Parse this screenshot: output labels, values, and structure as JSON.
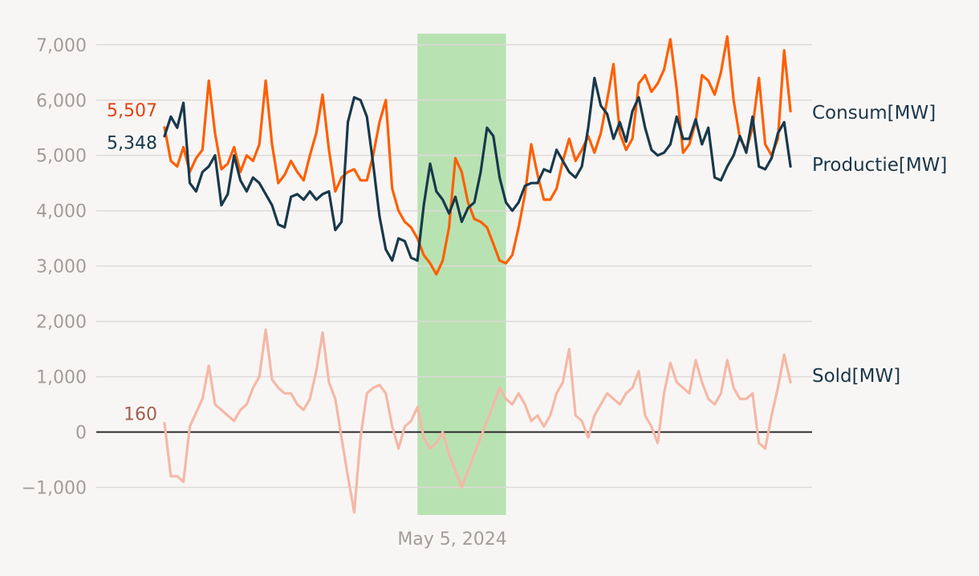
{
  "chart_data": {
    "type": "line",
    "ylim": [
      -1500,
      7200
    ],
    "xlim": [
      0,
      1
    ],
    "y_ticks": [
      {
        "value": 7000,
        "label": "7,000"
      },
      {
        "value": 6000,
        "label": "6,000"
      },
      {
        "value": 5000,
        "label": "5,000"
      },
      {
        "value": 4000,
        "label": "4,000"
      },
      {
        "value": 3000,
        "label": "3,000"
      },
      {
        "value": 2000,
        "label": "2,000"
      },
      {
        "value": 1000,
        "label": "1,000"
      },
      {
        "value": 0,
        "label": "0"
      },
      {
        "value": -1000,
        "label": "−1,000"
      }
    ],
    "x_ticks": [
      {
        "x": 0.455,
        "label": "May 5, 2024"
      }
    ],
    "highlight": {
      "x_start": 0.4,
      "x_end": 0.54,
      "color": "#b9e2b3"
    },
    "zero_line_color": "#222222",
    "series": [
      {
        "name": "Consum[MW]",
        "color": "#ff5f00",
        "start_label": "5,507",
        "start_label_color": "#e0430e",
        "points": [
          [
            0.0,
            5507
          ],
          [
            0.01,
            4900
          ],
          [
            0.02,
            4800
          ],
          [
            0.03,
            5150
          ],
          [
            0.04,
            4700
          ],
          [
            0.05,
            4950
          ],
          [
            0.06,
            5100
          ],
          [
            0.07,
            6350
          ],
          [
            0.08,
            5400
          ],
          [
            0.09,
            4750
          ],
          [
            0.1,
            4850
          ],
          [
            0.11,
            5150
          ],
          [
            0.12,
            4700
          ],
          [
            0.13,
            5000
          ],
          [
            0.14,
            4900
          ],
          [
            0.15,
            5200
          ],
          [
            0.16,
            6350
          ],
          [
            0.17,
            5200
          ],
          [
            0.18,
            4500
          ],
          [
            0.19,
            4650
          ],
          [
            0.2,
            4900
          ],
          [
            0.21,
            4700
          ],
          [
            0.22,
            4550
          ],
          [
            0.23,
            5000
          ],
          [
            0.24,
            5400
          ],
          [
            0.25,
            6100
          ],
          [
            0.26,
            5100
          ],
          [
            0.27,
            4350
          ],
          [
            0.28,
            4600
          ],
          [
            0.29,
            4700
          ],
          [
            0.3,
            4750
          ],
          [
            0.31,
            4550
          ],
          [
            0.32,
            4550
          ],
          [
            0.33,
            5000
          ],
          [
            0.34,
            5600
          ],
          [
            0.35,
            6000
          ],
          [
            0.36,
            4400
          ],
          [
            0.37,
            4000
          ],
          [
            0.38,
            3800
          ],
          [
            0.39,
            3700
          ],
          [
            0.4,
            3500
          ],
          [
            0.41,
            3200
          ],
          [
            0.42,
            3050
          ],
          [
            0.43,
            2850
          ],
          [
            0.44,
            3100
          ],
          [
            0.45,
            3700
          ],
          [
            0.46,
            4950
          ],
          [
            0.47,
            4700
          ],
          [
            0.48,
            4150
          ],
          [
            0.49,
            3850
          ],
          [
            0.5,
            3800
          ],
          [
            0.51,
            3700
          ],
          [
            0.52,
            3400
          ],
          [
            0.53,
            3100
          ],
          [
            0.54,
            3050
          ],
          [
            0.55,
            3200
          ],
          [
            0.56,
            3700
          ],
          [
            0.57,
            4300
          ],
          [
            0.58,
            5200
          ],
          [
            0.59,
            4650
          ],
          [
            0.6,
            4200
          ],
          [
            0.61,
            4200
          ],
          [
            0.62,
            4400
          ],
          [
            0.63,
            4900
          ],
          [
            0.64,
            5300
          ],
          [
            0.65,
            4900
          ],
          [
            0.66,
            5100
          ],
          [
            0.67,
            5350
          ],
          [
            0.68,
            5050
          ],
          [
            0.69,
            5400
          ],
          [
            0.7,
            6000
          ],
          [
            0.71,
            6650
          ],
          [
            0.72,
            5400
          ],
          [
            0.73,
            5100
          ],
          [
            0.74,
            5300
          ],
          [
            0.75,
            6300
          ],
          [
            0.76,
            6450
          ],
          [
            0.77,
            6150
          ],
          [
            0.78,
            6300
          ],
          [
            0.79,
            6550
          ],
          [
            0.8,
            7100
          ],
          [
            0.81,
            6200
          ],
          [
            0.82,
            5050
          ],
          [
            0.83,
            5200
          ],
          [
            0.84,
            5600
          ],
          [
            0.85,
            6450
          ],
          [
            0.86,
            6350
          ],
          [
            0.87,
            6100
          ],
          [
            0.88,
            6500
          ],
          [
            0.89,
            7150
          ],
          [
            0.9,
            6000
          ],
          [
            0.91,
            5300
          ],
          [
            0.92,
            5100
          ],
          [
            0.93,
            5500
          ],
          [
            0.94,
            6400
          ],
          [
            0.95,
            5200
          ],
          [
            0.96,
            5000
          ],
          [
            0.97,
            5300
          ],
          [
            0.98,
            6900
          ],
          [
            0.99,
            5800
          ]
        ]
      },
      {
        "name": "Productie[MW]",
        "color": "#18394b",
        "start_label": "5,348",
        "start_label_color": "#18394b",
        "points": [
          [
            0.0,
            5348
          ],
          [
            0.01,
            5700
          ],
          [
            0.02,
            5500
          ],
          [
            0.03,
            5950
          ],
          [
            0.04,
            4500
          ],
          [
            0.05,
            4350
          ],
          [
            0.06,
            4700
          ],
          [
            0.07,
            4800
          ],
          [
            0.08,
            5000
          ],
          [
            0.09,
            4100
          ],
          [
            0.1,
            4300
          ],
          [
            0.11,
            5000
          ],
          [
            0.12,
            4550
          ],
          [
            0.13,
            4350
          ],
          [
            0.14,
            4600
          ],
          [
            0.15,
            4500
          ],
          [
            0.16,
            4300
          ],
          [
            0.17,
            4100
          ],
          [
            0.18,
            3750
          ],
          [
            0.19,
            3700
          ],
          [
            0.2,
            4250
          ],
          [
            0.21,
            4300
          ],
          [
            0.22,
            4200
          ],
          [
            0.23,
            4350
          ],
          [
            0.24,
            4200
          ],
          [
            0.25,
            4300
          ],
          [
            0.26,
            4350
          ],
          [
            0.27,
            3650
          ],
          [
            0.28,
            3800
          ],
          [
            0.29,
            5600
          ],
          [
            0.3,
            6050
          ],
          [
            0.31,
            6000
          ],
          [
            0.32,
            5700
          ],
          [
            0.33,
            4850
          ],
          [
            0.34,
            3900
          ],
          [
            0.35,
            3300
          ],
          [
            0.36,
            3100
          ],
          [
            0.37,
            3500
          ],
          [
            0.38,
            3450
          ],
          [
            0.39,
            3150
          ],
          [
            0.4,
            3100
          ],
          [
            0.41,
            4100
          ],
          [
            0.42,
            4850
          ],
          [
            0.43,
            4350
          ],
          [
            0.44,
            4200
          ],
          [
            0.45,
            3950
          ],
          [
            0.46,
            4250
          ],
          [
            0.47,
            3800
          ],
          [
            0.48,
            4050
          ],
          [
            0.49,
            4150
          ],
          [
            0.5,
            4700
          ],
          [
            0.51,
            5500
          ],
          [
            0.52,
            5350
          ],
          [
            0.53,
            4600
          ],
          [
            0.54,
            4150
          ],
          [
            0.55,
            4000
          ],
          [
            0.56,
            4150
          ],
          [
            0.57,
            4450
          ],
          [
            0.58,
            4500
          ],
          [
            0.59,
            4500
          ],
          [
            0.6,
            4750
          ],
          [
            0.61,
            4700
          ],
          [
            0.62,
            5100
          ],
          [
            0.63,
            4900
          ],
          [
            0.64,
            4700
          ],
          [
            0.65,
            4600
          ],
          [
            0.66,
            4800
          ],
          [
            0.67,
            5500
          ],
          [
            0.68,
            6400
          ],
          [
            0.69,
            5900
          ],
          [
            0.7,
            5750
          ],
          [
            0.71,
            5300
          ],
          [
            0.72,
            5600
          ],
          [
            0.73,
            5250
          ],
          [
            0.74,
            5800
          ],
          [
            0.75,
            6050
          ],
          [
            0.76,
            5500
          ],
          [
            0.77,
            5100
          ],
          [
            0.78,
            5000
          ],
          [
            0.79,
            5050
          ],
          [
            0.8,
            5200
          ],
          [
            0.81,
            5700
          ],
          [
            0.82,
            5300
          ],
          [
            0.83,
            5300
          ],
          [
            0.84,
            5650
          ],
          [
            0.85,
            5200
          ],
          [
            0.86,
            5500
          ],
          [
            0.87,
            4600
          ],
          [
            0.88,
            4550
          ],
          [
            0.89,
            4800
          ],
          [
            0.9,
            5000
          ],
          [
            0.91,
            5350
          ],
          [
            0.92,
            5050
          ],
          [
            0.93,
            5700
          ],
          [
            0.94,
            4800
          ],
          [
            0.95,
            4750
          ],
          [
            0.96,
            4950
          ],
          [
            0.97,
            5400
          ],
          [
            0.98,
            5600
          ],
          [
            0.99,
            4800
          ]
        ]
      },
      {
        "name": "Sold[MW]",
        "color": "#f5b8a6",
        "start_label": "160",
        "start_label_color": "#a0604e",
        "points": [
          [
            0.0,
            160
          ],
          [
            0.01,
            -800
          ],
          [
            0.02,
            -800
          ],
          [
            0.03,
            -900
          ],
          [
            0.04,
            100
          ],
          [
            0.05,
            350
          ],
          [
            0.06,
            600
          ],
          [
            0.07,
            1200
          ],
          [
            0.08,
            500
          ],
          [
            0.09,
            400
          ],
          [
            0.1,
            300
          ],
          [
            0.11,
            200
          ],
          [
            0.12,
            400
          ],
          [
            0.13,
            500
          ],
          [
            0.14,
            800
          ],
          [
            0.15,
            1000
          ],
          [
            0.16,
            1850
          ],
          [
            0.17,
            950
          ],
          [
            0.18,
            800
          ],
          [
            0.19,
            700
          ],
          [
            0.2,
            700
          ],
          [
            0.21,
            500
          ],
          [
            0.22,
            400
          ],
          [
            0.23,
            600
          ],
          [
            0.24,
            1100
          ],
          [
            0.25,
            1800
          ],
          [
            0.26,
            900
          ],
          [
            0.27,
            600
          ],
          [
            0.28,
            -100
          ],
          [
            0.29,
            -800
          ],
          [
            0.3,
            -1450
          ],
          [
            0.31,
            -100
          ],
          [
            0.32,
            700
          ],
          [
            0.33,
            800
          ],
          [
            0.34,
            850
          ],
          [
            0.35,
            700
          ],
          [
            0.36,
            100
          ],
          [
            0.37,
            -300
          ],
          [
            0.38,
            100
          ],
          [
            0.39,
            200
          ],
          [
            0.4,
            450
          ],
          [
            0.41,
            -100
          ],
          [
            0.42,
            -300
          ],
          [
            0.43,
            -200
          ],
          [
            0.44,
            0
          ],
          [
            0.45,
            -400
          ],
          [
            0.46,
            -700
          ],
          [
            0.47,
            -1000
          ],
          [
            0.48,
            -700
          ],
          [
            0.49,
            -400
          ],
          [
            0.5,
            -100
          ],
          [
            0.51,
            200
          ],
          [
            0.52,
            500
          ],
          [
            0.53,
            800
          ],
          [
            0.54,
            600
          ],
          [
            0.55,
            500
          ],
          [
            0.56,
            700
          ],
          [
            0.57,
            500
          ],
          [
            0.58,
            200
          ],
          [
            0.59,
            300
          ],
          [
            0.6,
            100
          ],
          [
            0.61,
            300
          ],
          [
            0.62,
            700
          ],
          [
            0.63,
            900
          ],
          [
            0.64,
            1500
          ],
          [
            0.65,
            300
          ],
          [
            0.66,
            200
          ],
          [
            0.67,
            -100
          ],
          [
            0.68,
            300
          ],
          [
            0.69,
            500
          ],
          [
            0.7,
            700
          ],
          [
            0.71,
            600
          ],
          [
            0.72,
            500
          ],
          [
            0.73,
            700
          ],
          [
            0.74,
            800
          ],
          [
            0.75,
            1100
          ],
          [
            0.76,
            300
          ],
          [
            0.77,
            100
          ],
          [
            0.78,
            -200
          ],
          [
            0.79,
            700
          ],
          [
            0.8,
            1250
          ],
          [
            0.81,
            900
          ],
          [
            0.82,
            800
          ],
          [
            0.83,
            700
          ],
          [
            0.84,
            1300
          ],
          [
            0.85,
            900
          ],
          [
            0.86,
            600
          ],
          [
            0.87,
            500
          ],
          [
            0.88,
            700
          ],
          [
            0.89,
            1300
          ],
          [
            0.9,
            800
          ],
          [
            0.91,
            600
          ],
          [
            0.92,
            600
          ],
          [
            0.93,
            700
          ],
          [
            0.94,
            -200
          ],
          [
            0.95,
            -300
          ],
          [
            0.96,
            300
          ],
          [
            0.97,
            800
          ],
          [
            0.98,
            1400
          ],
          [
            0.99,
            900
          ]
        ]
      }
    ]
  }
}
